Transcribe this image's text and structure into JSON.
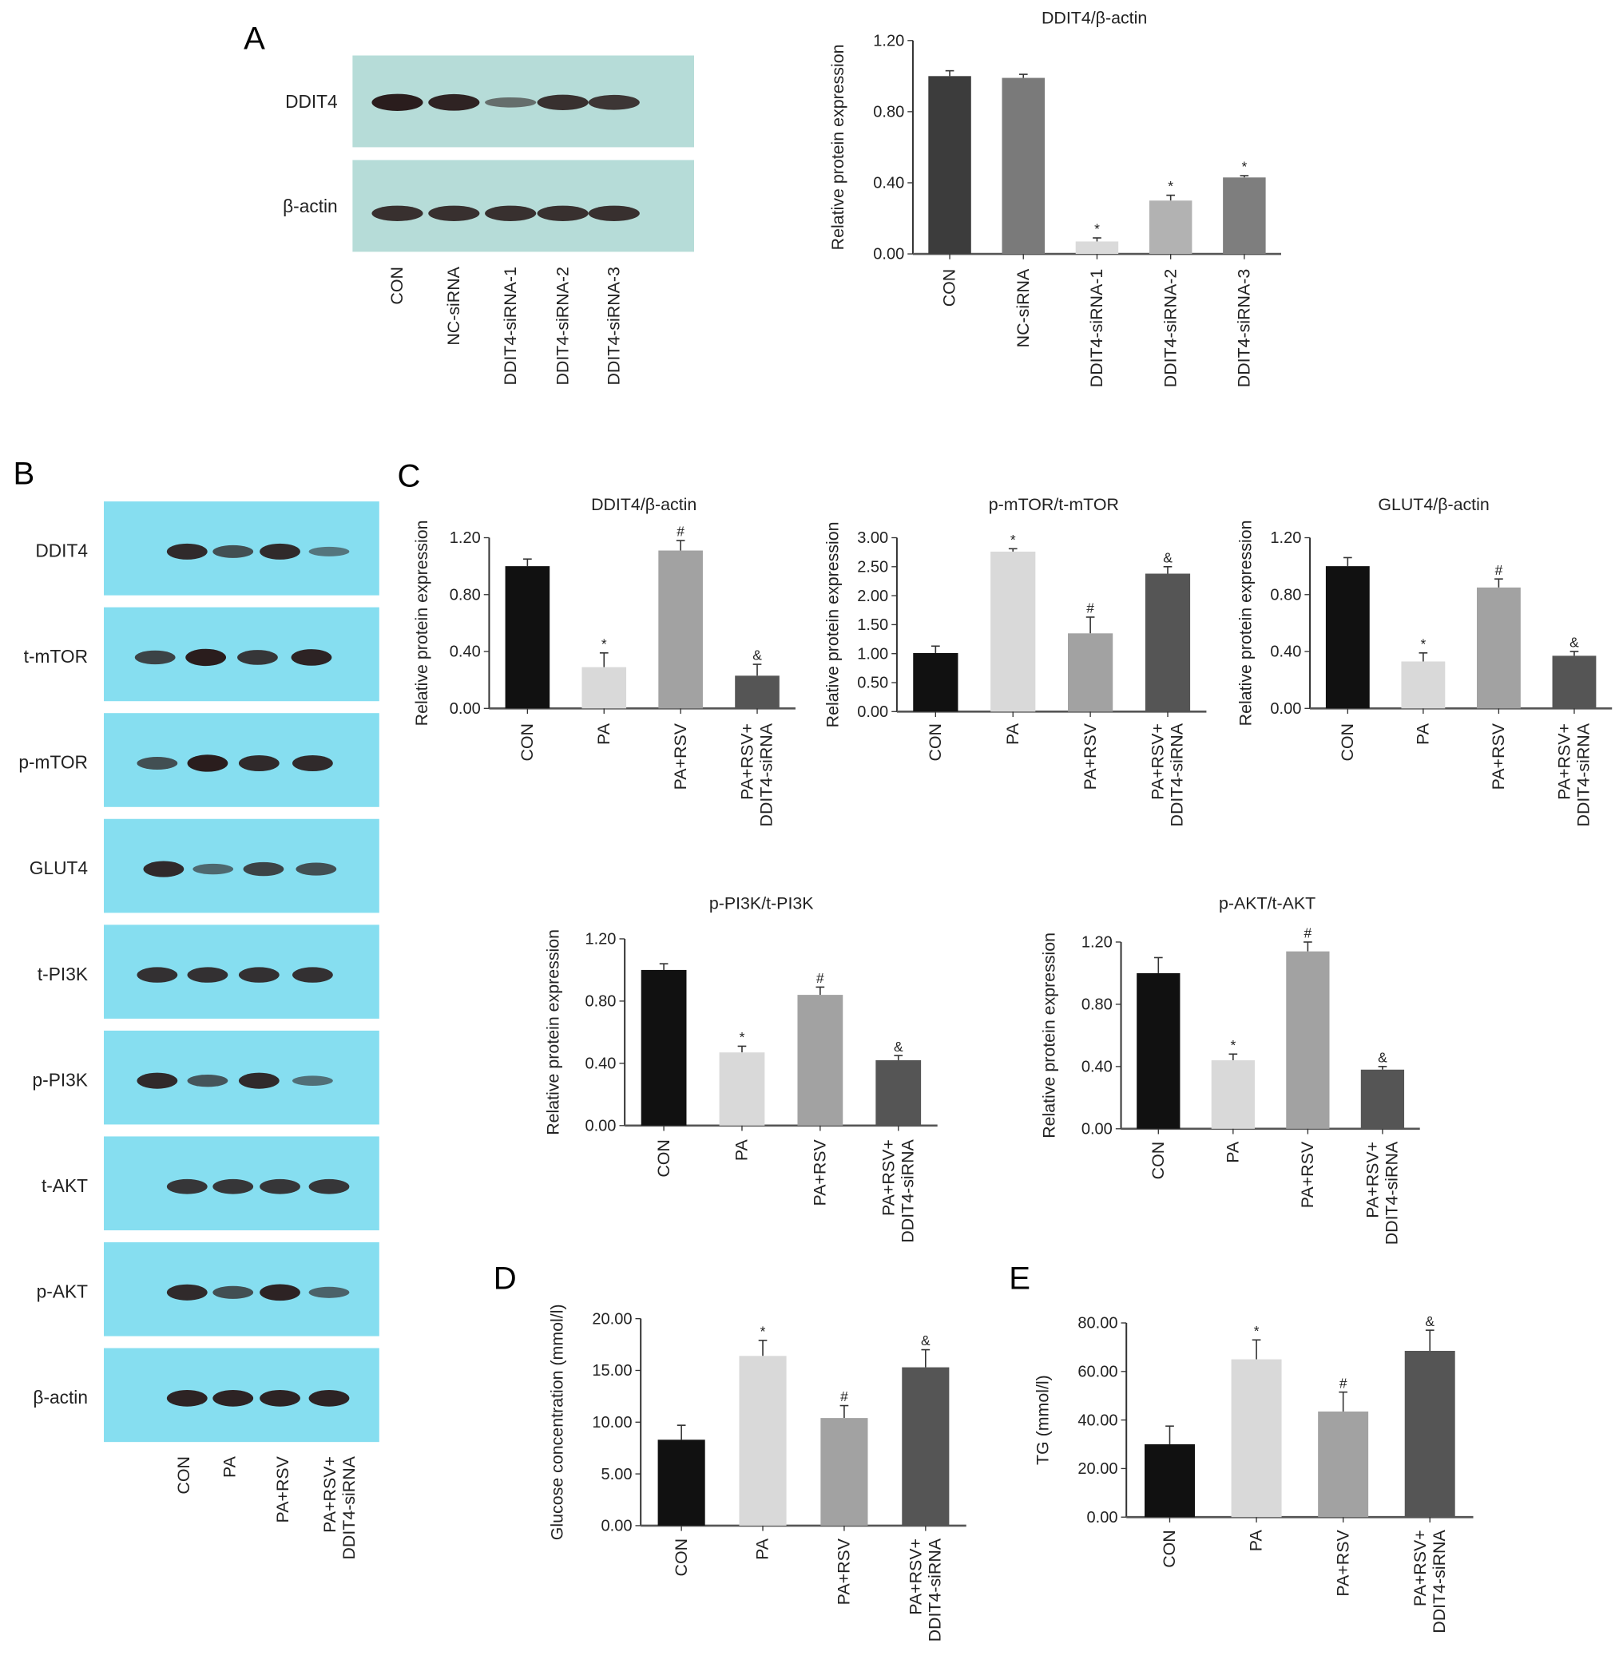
{
  "panel_labels": {
    "A": "A",
    "B": "B",
    "C": "C",
    "D": "D",
    "E": "E"
  },
  "blot_A": {
    "rows": [
      {
        "label": "DDIT4",
        "band_intensity": [
          1.0,
          0.95,
          0.35,
          0.85,
          0.8
        ]
      },
      {
        "label": "β-actin",
        "band_intensity": [
          0.85,
          0.85,
          0.85,
          0.85,
          0.85
        ]
      }
    ],
    "lanes": [
      "CON",
      "NC-siRNA",
      "DDIT4-siRNA-1",
      "DDIT4-siRNA-2",
      "DDIT4-siRNA-3"
    ],
    "background": "#b6dcd8"
  },
  "blot_B": {
    "rows": [
      {
        "label": "DDIT4",
        "band_intensity": [
          0.9,
          0.6,
          0.9,
          0.3
        ]
      },
      {
        "label": "t-mTOR",
        "band_intensity": [
          0.7,
          1.0,
          0.8,
          0.95
        ]
      },
      {
        "label": "p-mTOR",
        "band_intensity": [
          0.6,
          1.0,
          0.9,
          0.9
        ]
      },
      {
        "label": "GLUT4",
        "band_intensity": [
          0.9,
          0.4,
          0.7,
          0.6
        ]
      },
      {
        "label": "t-PI3K",
        "band_intensity": [
          0.85,
          0.85,
          0.85,
          0.85
        ]
      },
      {
        "label": "p-PI3K",
        "band_intensity": [
          0.9,
          0.55,
          0.9,
          0.35
        ]
      },
      {
        "label": "t-AKT",
        "band_intensity": [
          0.8,
          0.8,
          0.8,
          0.8
        ]
      },
      {
        "label": "p-AKT",
        "band_intensity": [
          0.9,
          0.6,
          0.95,
          0.45
        ]
      },
      {
        "label": "β-actin",
        "band_intensity": [
          0.95,
          0.95,
          0.95,
          0.95
        ]
      }
    ],
    "lanes": [
      "CON",
      "PA",
      "PA+RSV",
      "PA+RSV+\nDDIT4-siRNA"
    ],
    "background": "#86def0"
  },
  "chart_data": [
    {
      "id": "A",
      "type": "bar",
      "title": "DDIT4/β-actin",
      "ylabel": "Relative protein expression",
      "categories": [
        "CON",
        "NC-siRNA",
        "DDIT4-siRNA-1",
        "DDIT4-siRNA-2",
        "DDIT4-siRNA-3"
      ],
      "values": [
        1.0,
        0.99,
        0.07,
        0.3,
        0.43
      ],
      "errors": [
        0.03,
        0.02,
        0.02,
        0.03,
        0.01
      ],
      "markers": [
        "",
        "",
        "*",
        "*",
        "*"
      ],
      "ylim": [
        0,
        1.2
      ],
      "ticks": [
        "0.00",
        "0.40",
        "0.80",
        "1.20"
      ],
      "colors": [
        "#3c3c3c",
        "#7a7a7a",
        "#dadada",
        "#b2b2b2",
        "#7e7e7e"
      ]
    },
    {
      "id": "C1",
      "type": "bar",
      "title": "DDIT4/β-actin",
      "ylabel": "Relative protein expression",
      "categories": [
        "CON",
        "PA",
        "PA+RSV",
        "PA+RSV+\nDDIT4-siRNA"
      ],
      "values": [
        1.0,
        0.29,
        1.11,
        0.23
      ],
      "errors": [
        0.05,
        0.1,
        0.07,
        0.08
      ],
      "markers": [
        "",
        "*",
        "#",
        "&"
      ],
      "ylim": [
        0,
        1.2
      ],
      "ticks": [
        "0.00",
        "0.40",
        "0.80",
        "1.20"
      ],
      "colors": [
        "#111111",
        "#d9d9d9",
        "#a2a2a2",
        "#555555"
      ]
    },
    {
      "id": "C2",
      "type": "bar",
      "title": "p-mTOR/t-mTOR",
      "ylabel": "Relative protein expression",
      "categories": [
        "CON",
        "PA",
        "PA+RSV",
        "PA+RSV+\nDDIT4-siRNA"
      ],
      "values": [
        1.01,
        2.76,
        1.35,
        2.38
      ],
      "errors": [
        0.12,
        0.05,
        0.28,
        0.12
      ],
      "markers": [
        "",
        "*",
        "#",
        "&"
      ],
      "ylim": [
        0,
        3.0
      ],
      "ticks": [
        "0.00",
        "0.50",
        "1.00",
        "1.50",
        "2.00",
        "2.50",
        "3.00"
      ],
      "colors": [
        "#111111",
        "#d9d9d9",
        "#a2a2a2",
        "#555555"
      ]
    },
    {
      "id": "C3",
      "type": "bar",
      "title": "GLUT4/β-actin",
      "ylabel": "Relative protein expression",
      "categories": [
        "CON",
        "PA",
        "PA+RSV",
        "PA+RSV+\nDDIT4-siRNA"
      ],
      "values": [
        1.0,
        0.33,
        0.85,
        0.37
      ],
      "errors": [
        0.06,
        0.06,
        0.06,
        0.03
      ],
      "markers": [
        "",
        "*",
        "#",
        "&"
      ],
      "ylim": [
        0,
        1.2
      ],
      "ticks": [
        "0.00",
        "0.40",
        "0.80",
        "1.20"
      ],
      "colors": [
        "#111111",
        "#d9d9d9",
        "#a2a2a2",
        "#555555"
      ]
    },
    {
      "id": "C4",
      "type": "bar",
      "title": "p-PI3K/t-PI3K",
      "ylabel": "Relative protein expression",
      "categories": [
        "CON",
        "PA",
        "PA+RSV",
        "PA+RSV+\nDDIT4-siRNA"
      ],
      "values": [
        1.0,
        0.47,
        0.84,
        0.42
      ],
      "errors": [
        0.04,
        0.04,
        0.05,
        0.03
      ],
      "markers": [
        "",
        "*",
        "#",
        "&"
      ],
      "ylim": [
        0,
        1.2
      ],
      "ticks": [
        "0.00",
        "0.40",
        "0.80",
        "1.20"
      ],
      "colors": [
        "#111111",
        "#d9d9d9",
        "#a2a2a2",
        "#555555"
      ]
    },
    {
      "id": "C5",
      "type": "bar",
      "title": "p-AKT/t-AKT",
      "ylabel": "Relative protein expression",
      "categories": [
        "CON",
        "PA",
        "PA+RSV",
        "PA+RSV+\nDDIT4-siRNA"
      ],
      "values": [
        1.0,
        0.44,
        1.14,
        0.38
      ],
      "errors": [
        0.1,
        0.04,
        0.06,
        0.02
      ],
      "markers": [
        "",
        "*",
        "#",
        "&"
      ],
      "ylim": [
        0,
        1.2
      ],
      "ticks": [
        "0.00",
        "0.40",
        "0.80",
        "1.20"
      ],
      "colors": [
        "#111111",
        "#d9d9d9",
        "#a2a2a2",
        "#555555"
      ]
    },
    {
      "id": "D",
      "type": "bar",
      "title": "",
      "ylabel": "Glucose concentration (mmol/l)",
      "categories": [
        "CON",
        "PA",
        "PA+RSV",
        "PA+RSV+\nDDIT4-siRNA"
      ],
      "values": [
        8.3,
        16.4,
        10.4,
        15.3
      ],
      "errors": [
        1.4,
        1.5,
        1.2,
        1.7
      ],
      "markers": [
        "",
        "*",
        "#",
        "&"
      ],
      "ylim": [
        0,
        20
      ],
      "ticks": [
        "0.00",
        "5.00",
        "10.00",
        "15.00",
        "20.00"
      ],
      "colors": [
        "#111111",
        "#d9d9d9",
        "#a2a2a2",
        "#555555"
      ]
    },
    {
      "id": "E",
      "type": "bar",
      "title": "",
      "ylabel": "TG (mmol/l)",
      "categories": [
        "CON",
        "PA",
        "PA+RSV",
        "PA+RSV+\nDDIT4-siRNA"
      ],
      "values": [
        30.0,
        65.0,
        43.5,
        68.5
      ],
      "errors": [
        7.5,
        8.0,
        8.0,
        8.5
      ],
      "markers": [
        "",
        "*",
        "#",
        "&"
      ],
      "ylim": [
        0,
        80
      ],
      "ticks": [
        "0.00",
        "20.00",
        "40.00",
        "60.00",
        "80.00"
      ],
      "colors": [
        "#111111",
        "#d9d9d9",
        "#a2a2a2",
        "#555555"
      ]
    }
  ]
}
